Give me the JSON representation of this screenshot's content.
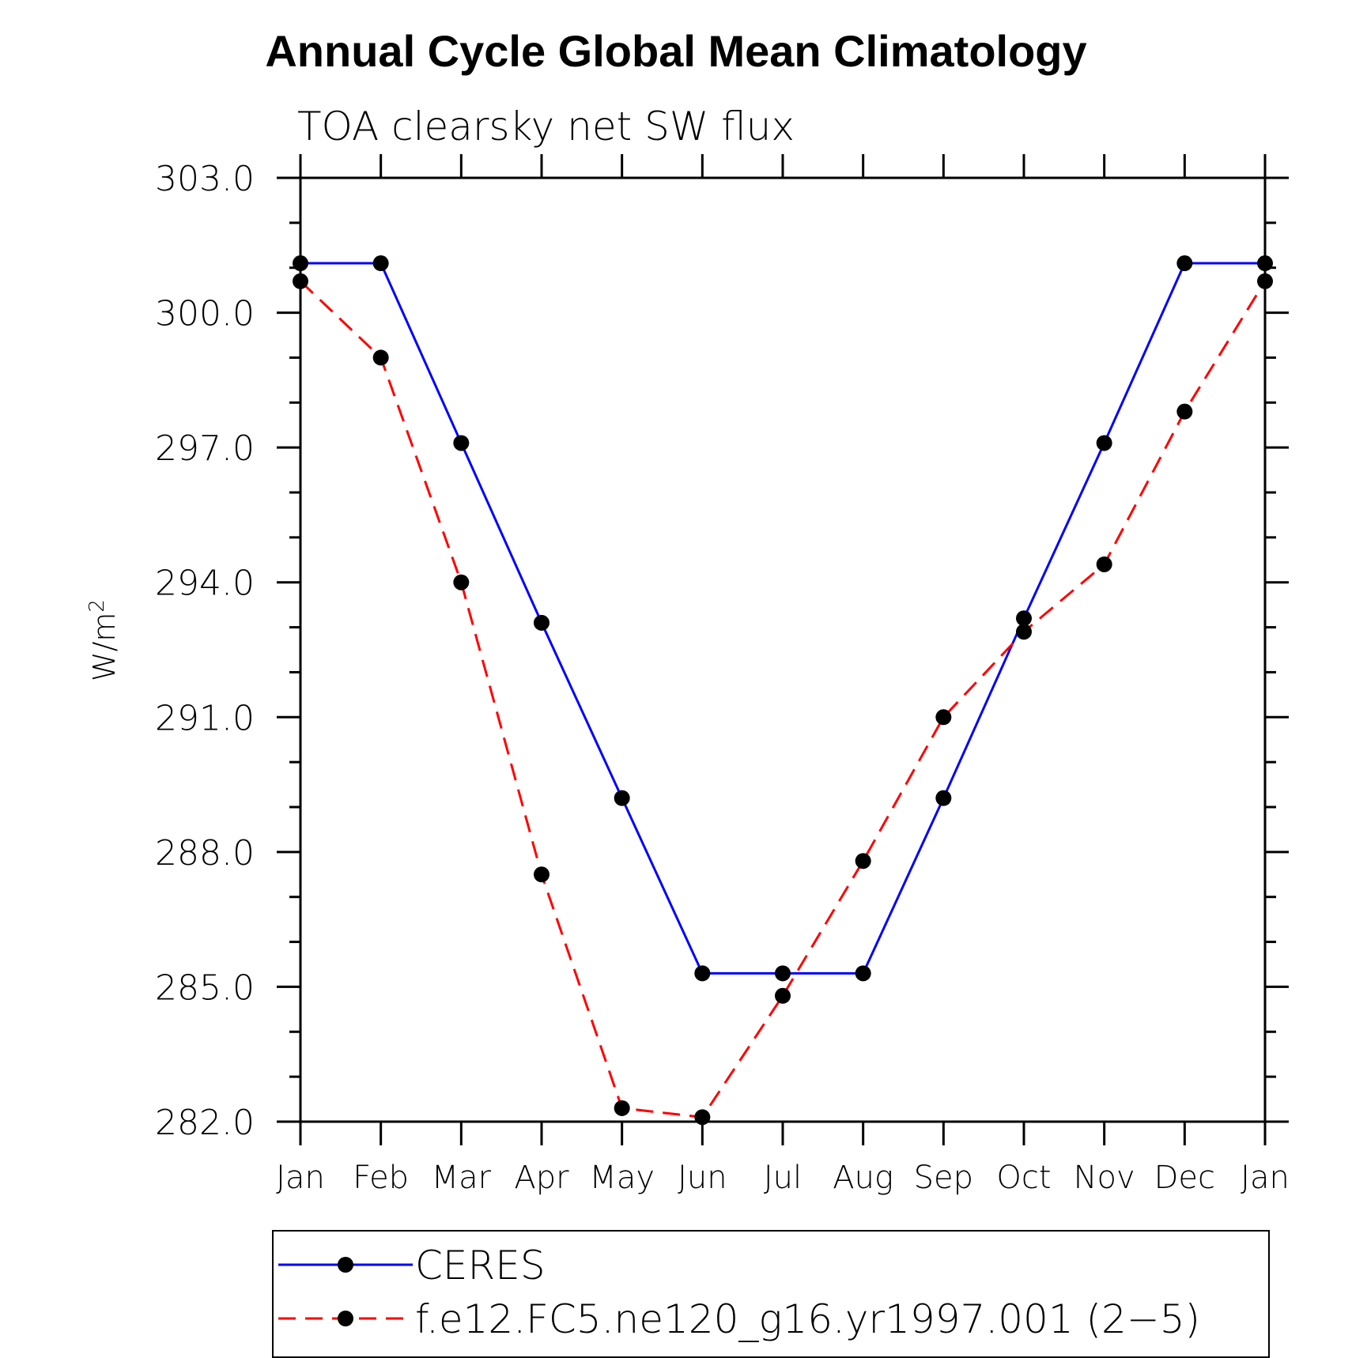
{
  "chart_data": {
    "type": "line",
    "title": "Annual Cycle Global Mean Climatology",
    "subtitle": "TOA clearsky net SW flux",
    "ylabel_base": "W/m",
    "ylabel_sup": "2",
    "xlabel": "",
    "categories": [
      "Jan",
      "Feb",
      "Mar",
      "Apr",
      "May",
      "Jun",
      "Jul",
      "Aug",
      "Sep",
      "Oct",
      "Nov",
      "Dec",
      "Jan"
    ],
    "ylim": [
      282.0,
      303.0
    ],
    "yticks": [
      "282.0",
      "285.0",
      "288.0",
      "291.0",
      "294.0",
      "297.0",
      "300.0",
      "303.0"
    ],
    "grid": false,
    "legend_position": "bottom",
    "series": [
      {
        "name": "CERES",
        "color": "#0000ff",
        "dash": "solid",
        "marker": "dot",
        "values": [
          301.1,
          301.1,
          297.1,
          293.1,
          289.2,
          285.3,
          285.3,
          285.3,
          289.2,
          293.2,
          297.1,
          301.1,
          301.1
        ]
      },
      {
        "name": "f.e12.FC5.ne120_g16.yr1997.001 (2−5)",
        "color": "#ff0000",
        "dash": "dashed",
        "marker": "dot",
        "values": [
          300.7,
          299.0,
          294.0,
          287.5,
          282.3,
          282.1,
          284.8,
          287.8,
          291.0,
          292.9,
          294.4,
          297.8,
          300.7
        ]
      }
    ]
  }
}
